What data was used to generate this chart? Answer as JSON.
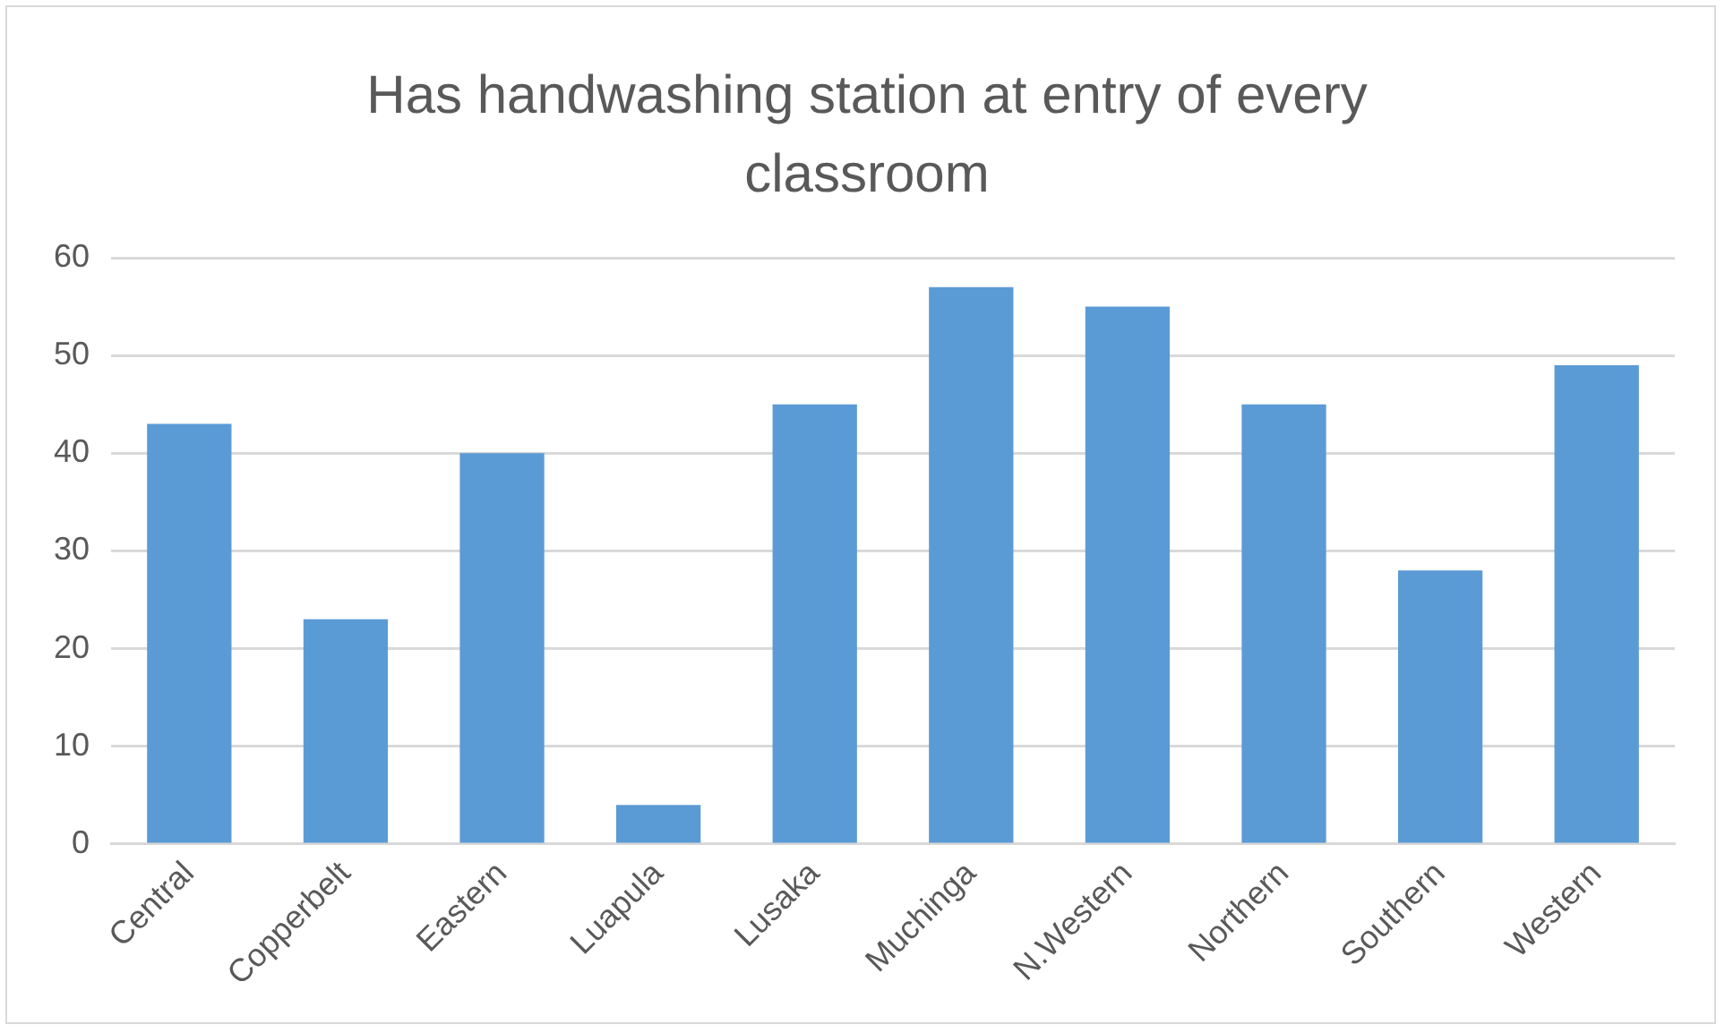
{
  "chart_data": {
    "type": "bar",
    "title": "Has handwashing station at entry of every classroom",
    "categories": [
      "Central",
      "Copperbelt",
      "Eastern",
      "Luapula",
      "Lusaka",
      "Muchinga",
      "N.Western",
      "Northern",
      "Southern",
      "Western"
    ],
    "values": [
      43,
      23,
      40,
      4,
      45,
      57,
      55,
      45,
      28,
      49
    ],
    "color": "#5b9bd5",
    "ylim": [
      0,
      60
    ],
    "yticks": [
      0,
      10,
      20,
      30,
      40,
      50,
      60
    ],
    "grid": "y",
    "legend": false
  }
}
